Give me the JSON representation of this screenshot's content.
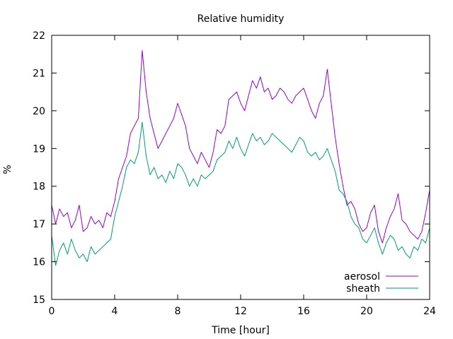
{
  "chart_data": {
    "type": "line",
    "title": "Relative humidity",
    "xlabel": "Time [hour]",
    "ylabel": "%",
    "xlim": [
      0,
      24
    ],
    "ylim": [
      15,
      22
    ],
    "xticks": [
      0,
      4,
      8,
      12,
      16,
      20,
      24
    ],
    "yticks": [
      15,
      16,
      17,
      18,
      19,
      20,
      21,
      22
    ],
    "grid": false,
    "legend_position": "bottom-right",
    "series": [
      {
        "name": "aerosol",
        "color": "#9400d3",
        "x": [
          0,
          0.25,
          0.5,
          0.75,
          1,
          1.25,
          1.5,
          1.75,
          2,
          2.25,
          2.5,
          2.75,
          3,
          3.25,
          3.5,
          3.75,
          4,
          4.25,
          4.5,
          4.75,
          5,
          5.25,
          5.5,
          5.75,
          6,
          6.25,
          6.5,
          6.75,
          7,
          7.25,
          7.5,
          7.75,
          8,
          8.25,
          8.5,
          8.75,
          9,
          9.25,
          9.5,
          9.75,
          10,
          10.25,
          10.5,
          10.75,
          11,
          11.25,
          11.5,
          11.75,
          12,
          12.25,
          12.5,
          12.75,
          13,
          13.25,
          13.5,
          13.75,
          14,
          14.25,
          14.5,
          14.75,
          15,
          15.25,
          15.5,
          15.75,
          16,
          16.25,
          16.5,
          16.75,
          17,
          17.25,
          17.5,
          17.75,
          18,
          18.25,
          18.5,
          18.75,
          19,
          19.25,
          19.5,
          19.75,
          20,
          20.25,
          20.5,
          20.75,
          21,
          21.25,
          21.5,
          21.75,
          22,
          22.25,
          22.5,
          22.75,
          23,
          23.25,
          23.5,
          23.75,
          24
        ],
        "y": [
          17.5,
          17.0,
          17.4,
          17.2,
          17.3,
          16.9,
          17.1,
          17.5,
          16.8,
          16.9,
          17.2,
          17.0,
          17.1,
          16.9,
          17.3,
          17.2,
          17.6,
          18.2,
          18.5,
          18.8,
          19.4,
          19.6,
          19.8,
          21.6,
          20.5,
          19.8,
          19.4,
          19.0,
          19.2,
          19.4,
          19.6,
          19.8,
          20.2,
          19.9,
          19.6,
          19.0,
          18.8,
          18.6,
          18.9,
          18.7,
          18.5,
          18.9,
          19.5,
          19.4,
          19.6,
          20.3,
          20.4,
          20.5,
          20.2,
          20.0,
          20.4,
          20.8,
          20.6,
          20.9,
          20.5,
          20.6,
          20.3,
          20.4,
          20.6,
          20.5,
          20.3,
          20.2,
          20.4,
          20.5,
          20.6,
          20.3,
          20.0,
          19.8,
          20.2,
          20.4,
          21.1,
          20.2,
          19.3,
          18.6,
          18.0,
          17.5,
          17.6,
          17.4,
          17.0,
          16.8,
          16.9,
          17.3,
          17.5,
          16.8,
          16.5,
          16.9,
          17.2,
          17.4,
          17.8,
          17.1,
          17.0,
          16.8,
          16.7,
          16.6,
          16.8,
          17.3,
          17.9
        ]
      },
      {
        "name": "sheath",
        "color": "#009e73",
        "x": [
          0,
          0.25,
          0.5,
          0.75,
          1,
          1.25,
          1.5,
          1.75,
          2,
          2.25,
          2.5,
          2.75,
          3,
          3.25,
          3.5,
          3.75,
          4,
          4.25,
          4.5,
          4.75,
          5,
          5.25,
          5.5,
          5.75,
          6,
          6.25,
          6.5,
          6.75,
          7,
          7.25,
          7.5,
          7.75,
          8,
          8.25,
          8.5,
          8.75,
          9,
          9.25,
          9.5,
          9.75,
          10,
          10.25,
          10.5,
          10.75,
          11,
          11.25,
          11.5,
          11.75,
          12,
          12.25,
          12.5,
          12.75,
          13,
          13.25,
          13.5,
          13.75,
          14,
          14.25,
          14.5,
          14.75,
          15,
          15.25,
          15.5,
          15.75,
          16,
          16.25,
          16.5,
          16.75,
          17,
          17.25,
          17.5,
          17.75,
          18,
          18.25,
          18.5,
          18.75,
          19,
          19.25,
          19.5,
          19.75,
          20,
          20.25,
          20.5,
          20.75,
          21,
          21.25,
          21.5,
          21.75,
          22,
          22.25,
          22.5,
          22.75,
          23,
          23.25,
          23.5,
          23.75,
          24
        ],
        "y": [
          16.7,
          15.9,
          16.3,
          16.5,
          16.2,
          16.6,
          16.3,
          16.1,
          16.2,
          16.0,
          16.4,
          16.2,
          16.3,
          16.4,
          16.5,
          16.6,
          17.2,
          17.6,
          18.0,
          18.5,
          18.7,
          18.6,
          18.9,
          19.7,
          18.8,
          18.3,
          18.5,
          18.2,
          18.3,
          18.1,
          18.4,
          18.2,
          18.6,
          18.5,
          18.3,
          18.0,
          18.2,
          18.0,
          18.3,
          18.2,
          18.3,
          18.4,
          18.7,
          18.8,
          18.9,
          19.2,
          19.0,
          19.3,
          19.0,
          18.8,
          19.1,
          19.4,
          19.2,
          19.3,
          19.1,
          19.2,
          19.4,
          19.3,
          19.2,
          19.1,
          19.0,
          18.9,
          19.1,
          19.3,
          19.2,
          18.9,
          18.8,
          18.9,
          18.7,
          18.8,
          19.0,
          18.7,
          18.4,
          17.9,
          17.8,
          17.6,
          17.2,
          17.0,
          16.9,
          16.6,
          16.5,
          16.7,
          16.9,
          16.5,
          16.2,
          16.5,
          16.7,
          16.6,
          16.3,
          16.4,
          16.2,
          16.1,
          16.4,
          16.3,
          16.6,
          16.5,
          16.9
        ]
      }
    ]
  }
}
